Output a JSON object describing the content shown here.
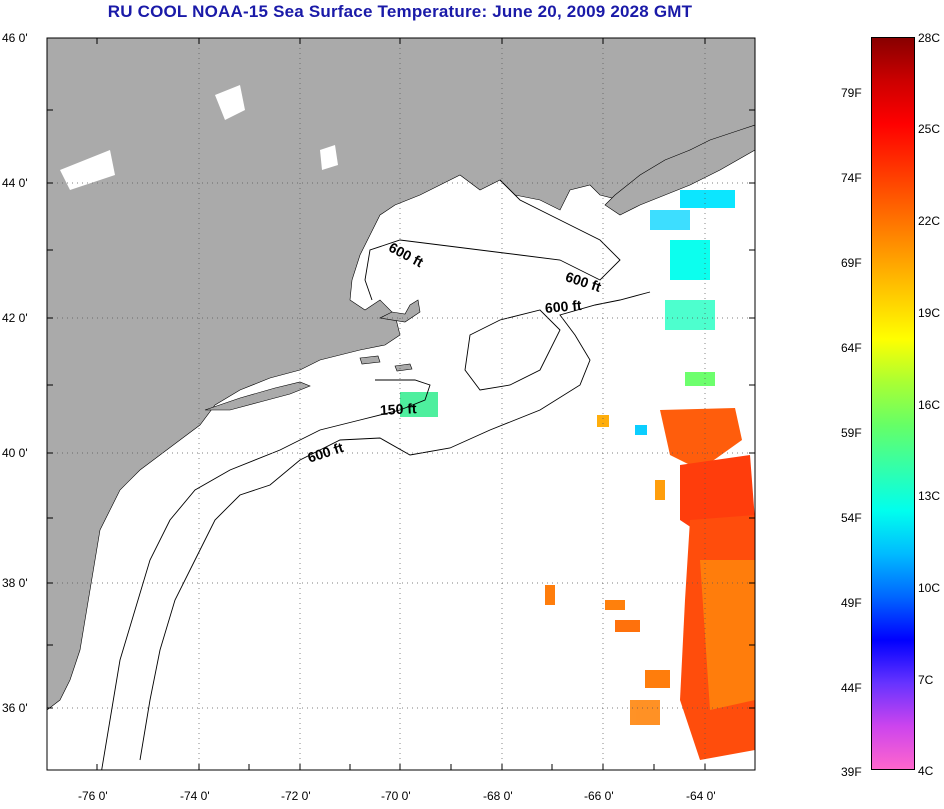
{
  "title": "RU COOL  NOAA-15  Sea Surface Temperature:  June 20, 2009 2028 GMT",
  "map": {
    "lon_range": [
      -77,
      -63
    ],
    "lat_range": [
      35,
      46
    ],
    "land_color": "#aaaaaa",
    "ocean_color": "#ffffff",
    "lat_labels": [
      "46 0'",
      "44 0'",
      "42 0'",
      "40 0'",
      "38 0'",
      "36 0'"
    ],
    "lon_labels": [
      "-76 0'",
      "-74 0'",
      "-72 0'",
      "-70 0'",
      "-68 0'",
      "-66 0'",
      "-64 0'"
    ],
    "isobath_labels": [
      {
        "text": "600 ft"
      },
      {
        "text": "600 ft"
      },
      {
        "text": "600 ft"
      },
      {
        "text": "150 ft"
      },
      {
        "text": "600 ft"
      }
    ],
    "grid": true
  },
  "colorbar": {
    "colors": [
      "#ff66cc",
      "#cc44ee",
      "#6633ff",
      "#0000ff",
      "#0066ff",
      "#00bbff",
      "#00ffee",
      "#33ffaa",
      "#66ff66",
      "#aaff33",
      "#ffff00",
      "#ffcc00",
      "#ff9900",
      "#ff6600",
      "#ff3300",
      "#ff0000",
      "#cc0000",
      "#880000"
    ],
    "fahrenheit_labels": [
      "79F",
      "74F",
      "69F",
      "64F",
      "59F",
      "54F",
      "49F",
      "44F",
      "39F"
    ],
    "celsius_labels": [
      "28C",
      "25C",
      "22C",
      "19C",
      "16C",
      "13C",
      "10C",
      "7C",
      "4C"
    ]
  }
}
